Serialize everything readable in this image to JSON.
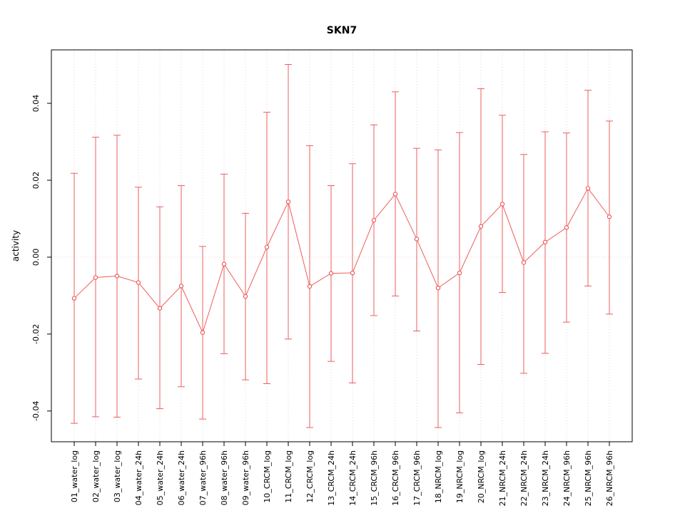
{
  "chart_data": {
    "type": "line",
    "title": "SKN7",
    "xlabel": "",
    "ylabel": "activity",
    "categories": [
      "01_water_log",
      "02_water_log",
      "03_water_log",
      "04_water_24h",
      "05_water_24h",
      "06_water_24h",
      "07_water_96h",
      "08_water_96h",
      "09_water_96h",
      "10_CRCM_log",
      "11_CRCM_log",
      "12_CRCM_log",
      "13_CRCM_24h",
      "14_CRCM_24h",
      "15_CRCM_96h",
      "16_CRCM_96h",
      "17_CRCM_96h",
      "18_NRCM_log",
      "19_NRCM_log",
      "20_NRCM_log",
      "21_NRCM_24h",
      "22_NRCM_24h",
      "23_NRCM_24h",
      "24_NRCM_96h",
      "25_NRCM_96h",
      "26_NRCM_96h"
    ],
    "series": [
      {
        "name": "activity_mean",
        "values": [
          -0.0107,
          -0.0053,
          -0.0049,
          -0.0066,
          -0.0133,
          -0.0075,
          -0.0196,
          -0.0018,
          -0.0102,
          0.0026,
          0.0144,
          -0.0076,
          -0.0042,
          -0.0041,
          0.0096,
          0.0164,
          0.0047,
          -0.008,
          -0.0041,
          0.008,
          0.0138,
          -0.0014,
          0.0039,
          0.0077,
          0.0179,
          0.0105
        ]
      },
      {
        "name": "upper_error",
        "values": [
          0.0218,
          0.0312,
          0.0317,
          0.0182,
          0.0131,
          0.0186,
          0.0028,
          0.0216,
          0.0114,
          0.0377,
          0.0501,
          0.029,
          0.0186,
          0.0243,
          0.0344,
          0.043,
          0.0283,
          0.0279,
          0.0324,
          0.0438,
          0.0369,
          0.0267,
          0.0326,
          0.0323,
          0.0434,
          0.0354
        ]
      },
      {
        "name": "lower_error",
        "values": [
          -0.0432,
          -0.0415,
          -0.0416,
          -0.0317,
          -0.0394,
          -0.0337,
          -0.0421,
          -0.0251,
          -0.0319,
          -0.0329,
          -0.0213,
          -0.0443,
          -0.0271,
          -0.0327,
          -0.0152,
          -0.0101,
          -0.0192,
          -0.0443,
          -0.0405,
          -0.0279,
          -0.0092,
          -0.0302,
          -0.025,
          -0.0169,
          -0.0075,
          -0.0148
        ]
      }
    ],
    "yticks": [
      "-0.04",
      "-0.02",
      "0.00",
      "0.02",
      "0.04"
    ],
    "ytick_values": [
      -0.04,
      -0.02,
      0.0,
      0.02,
      0.04
    ],
    "ylim": [
      -0.048,
      0.0539
    ],
    "grid": "vertical-dotted",
    "zero_line": true,
    "legend": "none",
    "colors": {
      "series": "#ee5c5c",
      "zero_line": "#ffc8c8",
      "grid": "#d9d9d9",
      "axis": "#000000",
      "background": "#ffffff"
    }
  }
}
